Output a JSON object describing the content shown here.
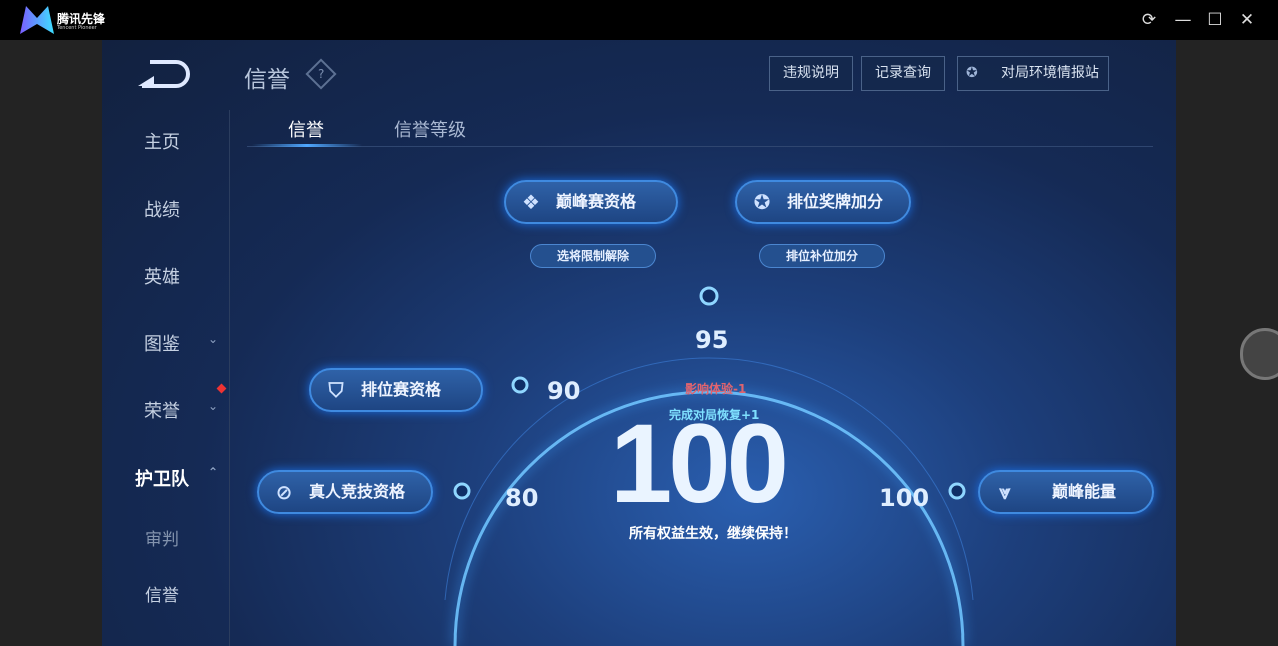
{
  "app": {
    "logo_text": "腾讯先锋",
    "logo_sub": "Tencent Pioneer",
    "controls": [
      "refresh-icon",
      "minimize-icon",
      "maximize-icon",
      "close-icon"
    ]
  },
  "header": {
    "title": "信誉",
    "help": "?",
    "buttons": [
      "违规说明",
      "记录查询",
      "对局环境情报站"
    ]
  },
  "sidebar": {
    "items": [
      {
        "label": "主页"
      },
      {
        "label": "战绩"
      },
      {
        "label": "英雄"
      },
      {
        "label": "图鉴"
      },
      {
        "label": "荣誉"
      },
      {
        "label": "护卫队"
      },
      {
        "label": "审判"
      },
      {
        "label": "信誉"
      }
    ]
  },
  "tabs": [
    "信誉",
    "信誉等级"
  ],
  "privileges": {
    "peak": "巅峰赛资格",
    "peak_sub": "选将限制解除",
    "rank_medal": "排位奖牌加分",
    "rank_medal_sub": "排位补位加分",
    "ranked": "排位赛资格",
    "real": "真人竞技资格",
    "peak_energy": "巅峰能量"
  },
  "thresholds": {
    "t80": "80",
    "t90": "90",
    "t95": "95",
    "t100": "100"
  },
  "score": {
    "value": "100",
    "penalty": "影响体验-1",
    "recover": "完成对局恢复+1",
    "status": "所有权益生效，继续保持！"
  },
  "colors": {
    "accent": "#3f8ae0",
    "penalty": "#e0646e",
    "recover": "#7fe0ff"
  }
}
